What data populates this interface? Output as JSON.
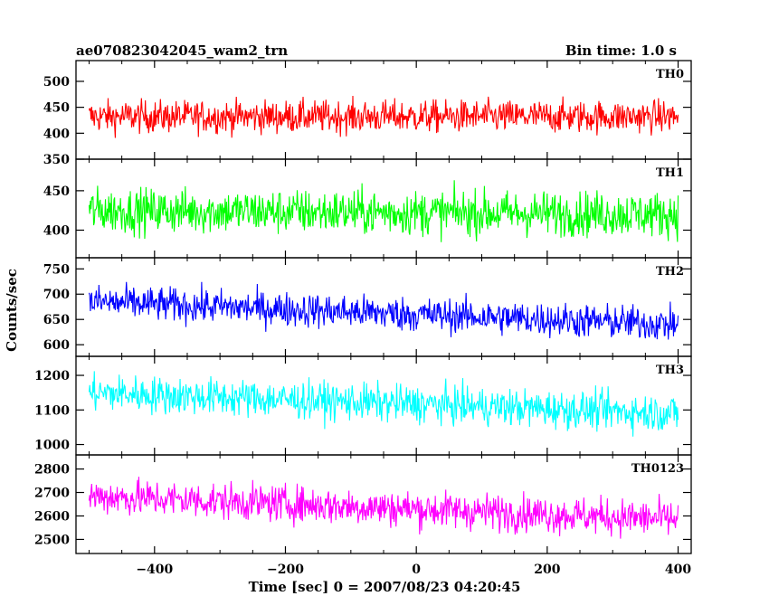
{
  "header": {
    "left_title": "ae070823042045_wam2_trn",
    "right_title": "Bin time: 1.0 s"
  },
  "chart_data": {
    "type": "line",
    "title": "ae070823042045_wam2_trn",
    "subtitle": "Bin time: 1.0 s",
    "xlabel": "Time [sec] 0 = 2007/08/23 04:20:45",
    "ylabel": "Counts/sec",
    "xlim": [
      -520,
      420
    ],
    "x_ticks": [
      -400,
      -200,
      0,
      200,
      400
    ],
    "x_tick_labels": [
      "−400",
      "−200",
      "0",
      "200",
      "400"
    ],
    "x_range": [
      -500,
      400
    ],
    "panels": [
      {
        "name": "TH0",
        "color": "#ff0000",
        "ylim": [
          350,
          540
        ],
        "y_ticks": [
          350,
          400,
          450,
          500
        ],
        "y_tick_labels": [
          "350",
          "400",
          "450",
          "500"
        ],
        "mean_start": 432,
        "mean_end": 432,
        "noise": 22,
        "spike_max": 540,
        "spike_min": 350
      },
      {
        "name": "TH1",
        "color": "#00ff00",
        "ylim": [
          365,
          490
        ],
        "y_ticks": [
          400,
          450
        ],
        "y_tick_labels": [
          "400",
          "450"
        ],
        "mean_start": 425,
        "mean_end": 420,
        "noise": 20,
        "spike_max": 490,
        "spike_min": 365
      },
      {
        "name": "TH2",
        "color": "#0000ff",
        "ylim": [
          577,
          772
        ],
        "y_ticks": [
          600,
          650,
          700,
          750
        ],
        "y_tick_labels": [
          "600",
          "650",
          "700",
          "750"
        ],
        "mean_start": 685,
        "mean_end": 640,
        "noise": 24,
        "spike_max": 772,
        "spike_min": 577
      },
      {
        "name": "TH3",
        "color": "#00ffff",
        "ylim": [
          970,
          1255
        ],
        "y_ticks": [
          1000,
          1100,
          1200
        ],
        "y_tick_labels": [
          "1000",
          "1100",
          "1200"
        ],
        "mean_start": 1150,
        "mean_end": 1090,
        "noise": 38,
        "spike_max": 1255,
        "spike_min": 970
      },
      {
        "name": "TH0123",
        "color": "#ff00ff",
        "ylim": [
          2440,
          2860
        ],
        "y_ticks": [
          2500,
          2600,
          2700,
          2800
        ],
        "y_tick_labels": [
          "2500",
          "2600",
          "2700",
          "2800"
        ],
        "mean_start": 2685,
        "mean_end": 2585,
        "noise": 55,
        "spike_max": 2860,
        "spike_min": 2440
      }
    ]
  }
}
